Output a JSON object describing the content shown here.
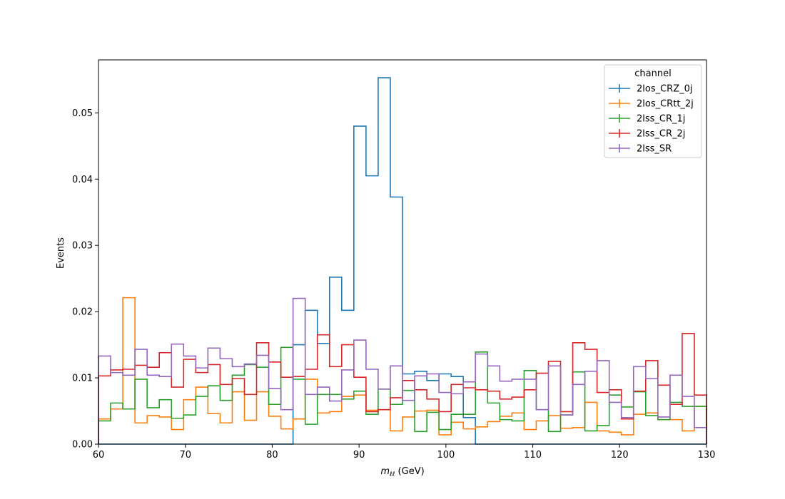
{
  "chart_data": {
    "type": "histogram-step",
    "title": "",
    "xlabel": "m_ℓℓ (GeV)",
    "xlabel_main": "m",
    "xlabel_sub": "ℓℓ",
    "xlabel_unit": " (GeV)",
    "ylabel": "Events",
    "xlim": [
      60,
      130
    ],
    "ylim": [
      0,
      0.058
    ],
    "xticks": [
      60,
      70,
      80,
      90,
      100,
      110,
      120,
      130
    ],
    "xtick_labels": [
      "60",
      "70",
      "80",
      "90",
      "100",
      "110",
      "120",
      "130"
    ],
    "yticks": [
      0,
      0.01,
      0.02,
      0.03,
      0.04,
      0.05
    ],
    "ytick_labels": [
      "0.00",
      "0.01",
      "0.02",
      "0.03",
      "0.04",
      "0.05"
    ],
    "bin_edges_start": 60,
    "bin_width": 1.4,
    "legend": {
      "title": "channel",
      "placement": "top-right"
    },
    "series": [
      {
        "name": "2los_CRZ_0j",
        "color": "#1f77b4",
        "values": [
          0,
          0,
          0,
          0,
          0,
          0,
          0,
          0,
          0,
          0,
          0,
          0,
          0,
          0,
          0,
          0,
          0.015,
          0.0202,
          0.0152,
          0.0252,
          0.0202,
          0.048,
          0.0405,
          0.0553,
          0.0373,
          0.0106,
          0.011,
          0.0096,
          0.0106,
          0.0102,
          0.004,
          0,
          0,
          0,
          0,
          0,
          0,
          0,
          0,
          0,
          0,
          0,
          0,
          0,
          0,
          0,
          0,
          0,
          0,
          0
        ]
      },
      {
        "name": "2los_CRtt_2j",
        "color": "#ff7f0e",
        "values": [
          0.0038,
          0.0053,
          0.0221,
          0.0032,
          0.0043,
          0.0041,
          0.0022,
          0.0067,
          0.0086,
          0.0046,
          0.0032,
          0.0079,
          0.0036,
          0.0079,
          0.0042,
          0.0023,
          0.0038,
          0.0098,
          0.0047,
          0.0049,
          0.0072,
          0.0074,
          0.0051,
          0.0052,
          0.002,
          0.0041,
          0.005,
          0.0051,
          0.0014,
          0.0033,
          0.0023,
          0.0026,
          0.0034,
          0.0042,
          0.0047,
          0.0022,
          0.0035,
          0.0043,
          0.0024,
          0.0025,
          0.0063,
          0.002,
          0.0018,
          0.0014,
          0.0045,
          0.0047,
          0.0037,
          0.0037,
          0.002,
          0.0057
        ]
      },
      {
        "name": "2lss_CR_1j",
        "color": "#2ca02c",
        "values": [
          0.0035,
          0.0062,
          0.0053,
          0.0098,
          0.0055,
          0.0067,
          0.0039,
          0.0044,
          0.0072,
          0.0088,
          0.0066,
          0.0104,
          0.012,
          0.0116,
          0.006,
          0.0146,
          0.0098,
          0.003,
          0.0075,
          0.0075,
          0.0068,
          0.008,
          0.0045,
          0.0083,
          0.006,
          0.0081,
          0.0019,
          0.0048,
          0.0022,
          0.0045,
          0.0045,
          0.0139,
          0.0062,
          0.0037,
          0.0035,
          0.0111,
          0.0052,
          0.0019,
          0.0044,
          0.0109,
          0.002,
          0.0028,
          0.0074,
          0.0056,
          0.0079,
          0.0043,
          0.0037,
          0.0063,
          0.0057,
          0.0057
        ]
      },
      {
        "name": "2lss_CR_2j",
        "color": "#d62728",
        "values": [
          0.0103,
          0.0112,
          0.0113,
          0.0119,
          0.0116,
          0.0138,
          0.0086,
          0.0128,
          0.0108,
          0.012,
          0.009,
          0.0099,
          0.0075,
          0.0153,
          0.0124,
          0.0101,
          0.0102,
          0.0113,
          0.0165,
          0.0117,
          0.015,
          0.0101,
          0.0049,
          0.0052,
          0.007,
          0.0096,
          0.0082,
          0.0068,
          0.0049,
          0.009,
          0.0085,
          0.0082,
          0.008,
          0.0068,
          0.0071,
          0.0082,
          0.0107,
          0.0125,
          0.0049,
          0.0153,
          0.0143,
          0.0078,
          0.0082,
          0.0038,
          0.008,
          0.0126,
          0.0089,
          0.006,
          0.0167,
          0.0074
        ]
      },
      {
        "name": "2lss_SR",
        "color": "#9467bd",
        "values": [
          0.0133,
          0.0108,
          0.0104,
          0.0143,
          0.0104,
          0.0102,
          0.0151,
          0.0133,
          0.0115,
          0.0145,
          0.0129,
          0.0117,
          0.0121,
          0.0134,
          0.0084,
          0.0052,
          0.022,
          0.0075,
          0.0086,
          0.0065,
          0.0112,
          0.0157,
          0.0113,
          0.0083,
          0.0118,
          0.0066,
          0.0103,
          0.0106,
          0.0078,
          0.0076,
          0.0094,
          0.0136,
          0.0118,
          0.0095,
          0.0098,
          0.0098,
          0.0052,
          0.0118,
          0.0044,
          0.009,
          0.011,
          0.0126,
          0.0063,
          0.004,
          0.0117,
          0.0099,
          0.0041,
          0.0104,
          0.0072,
          0.0025
        ]
      }
    ]
  }
}
